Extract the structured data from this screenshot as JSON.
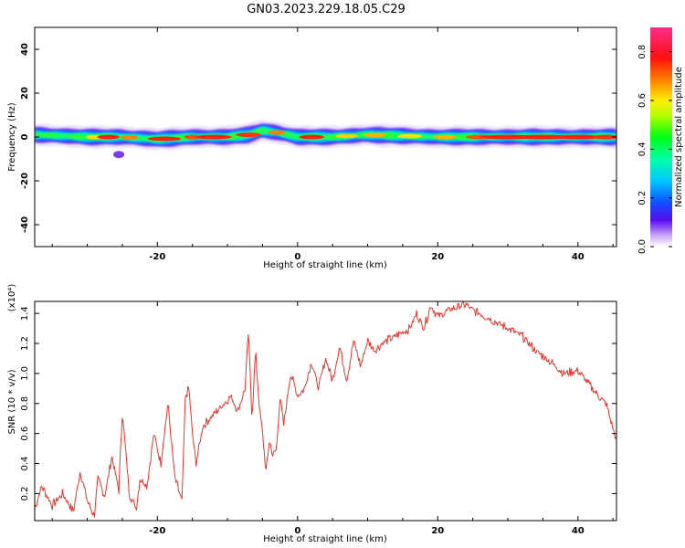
{
  "title": "GN03.2023.229.18.05.C29",
  "chart_data": [
    {
      "type": "heatmap",
      "xlabel": "Height of straight line (km)",
      "ylabel": "Frequency (Hz)",
      "xlim": [
        -37.5,
        45.5
      ],
      "ylim": [
        -50,
        50
      ],
      "xticks": [
        -20,
        0,
        20,
        40
      ],
      "xtick_labels": [
        "-20",
        "0",
        "20",
        "40"
      ],
      "yticks": [
        -40,
        -20,
        0,
        20,
        40
      ],
      "ytick_labels": [
        "-40",
        "-20",
        "0",
        "20",
        "40"
      ],
      "colorbar": {
        "label": "Normalized spectral amplitude",
        "range": [
          0.0,
          0.9
        ],
        "ticks": [
          "0.0",
          "0.2",
          "0.4",
          "0.6",
          "0.8"
        ],
        "tick_values": [
          0.0,
          0.2,
          0.4,
          0.6,
          0.8
        ]
      },
      "ridge": {
        "note": "Narrow band of strong spectral amplitude centered near 0 Hz across all heights, with a small bump near -5 km",
        "x": [
          -37,
          -30,
          -25,
          -20,
          -15,
          -10,
          -7,
          -5,
          -3,
          0,
          5,
          10,
          20,
          30,
          40,
          45.5
        ],
        "center_hz": [
          1,
          0,
          0,
          -1,
          0,
          0,
          1,
          3,
          2,
          0,
          0,
          1,
          0,
          0,
          0,
          0
        ]
      }
    },
    {
      "type": "line",
      "xlabel": "Height of straight line (km)",
      "ylabel": "SNR (10 * v/v)",
      "yscale_label": "(x10⁴)",
      "xlim": [
        -37.5,
        45.5
      ],
      "ylim": [
        0.02,
        1.48
      ],
      "xticks": [
        -20,
        0,
        20,
        40
      ],
      "xtick_labels": [
        "-20",
        "0",
        "20",
        "40"
      ],
      "yticks": [
        0.2,
        0.4,
        0.6,
        0.8,
        1.0,
        1.2,
        1.4
      ],
      "ytick_labels": [
        "0.2",
        "0.4",
        "0.6",
        "0.8",
        "1.0",
        "1.2",
        "1.4"
      ],
      "color": "#e8342c",
      "series": [
        {
          "name": "SNR",
          "x": [
            -37.5,
            -36.5,
            -35,
            -33.5,
            -32,
            -31,
            -30,
            -29,
            -28.5,
            -27.5,
            -26.5,
            -25.5,
            -25,
            -24,
            -23,
            -22.5,
            -21.5,
            -20.5,
            -19.5,
            -18.5,
            -17.5,
            -16.5,
            -16,
            -15.5,
            -15,
            -14.5,
            -13.5,
            -12.5,
            -11.5,
            -10.5,
            -9.5,
            -8.5,
            -7.5,
            -7,
            -6.5,
            -6,
            -5.5,
            -5,
            -4.5,
            -4,
            -3.5,
            -3,
            -2.5,
            -2,
            -1,
            0,
            1,
            2,
            3,
            4,
            5,
            6,
            7,
            8,
            9,
            10,
            11,
            12,
            14,
            16,
            17,
            18,
            19,
            20,
            22,
            24,
            25,
            26,
            28,
            30,
            32,
            34,
            36,
            38,
            40,
            42,
            44,
            45.5
          ],
          "y": [
            0.1,
            0.25,
            0.12,
            0.2,
            0.08,
            0.35,
            0.15,
            0.05,
            0.3,
            0.18,
            0.45,
            0.22,
            0.75,
            0.2,
            0.1,
            0.3,
            0.25,
            0.6,
            0.4,
            0.8,
            0.3,
            0.15,
            0.85,
            0.9,
            0.6,
            0.4,
            0.65,
            0.7,
            0.75,
            0.8,
            0.85,
            0.75,
            0.9,
            1.28,
            0.7,
            1.15,
            0.8,
            0.6,
            0.35,
            0.55,
            0.45,
            0.5,
            0.85,
            0.65,
            1.0,
            0.85,
            0.9,
            1.08,
            0.9,
            1.1,
            0.95,
            1.18,
            0.95,
            1.22,
            1.05,
            1.22,
            1.15,
            1.2,
            1.25,
            1.3,
            1.4,
            1.3,
            1.45,
            1.38,
            1.43,
            1.46,
            1.42,
            1.4,
            1.35,
            1.3,
            1.25,
            1.15,
            1.08,
            1.0,
            1.02,
            0.9,
            0.8,
            0.55
          ]
        }
      ]
    }
  ]
}
